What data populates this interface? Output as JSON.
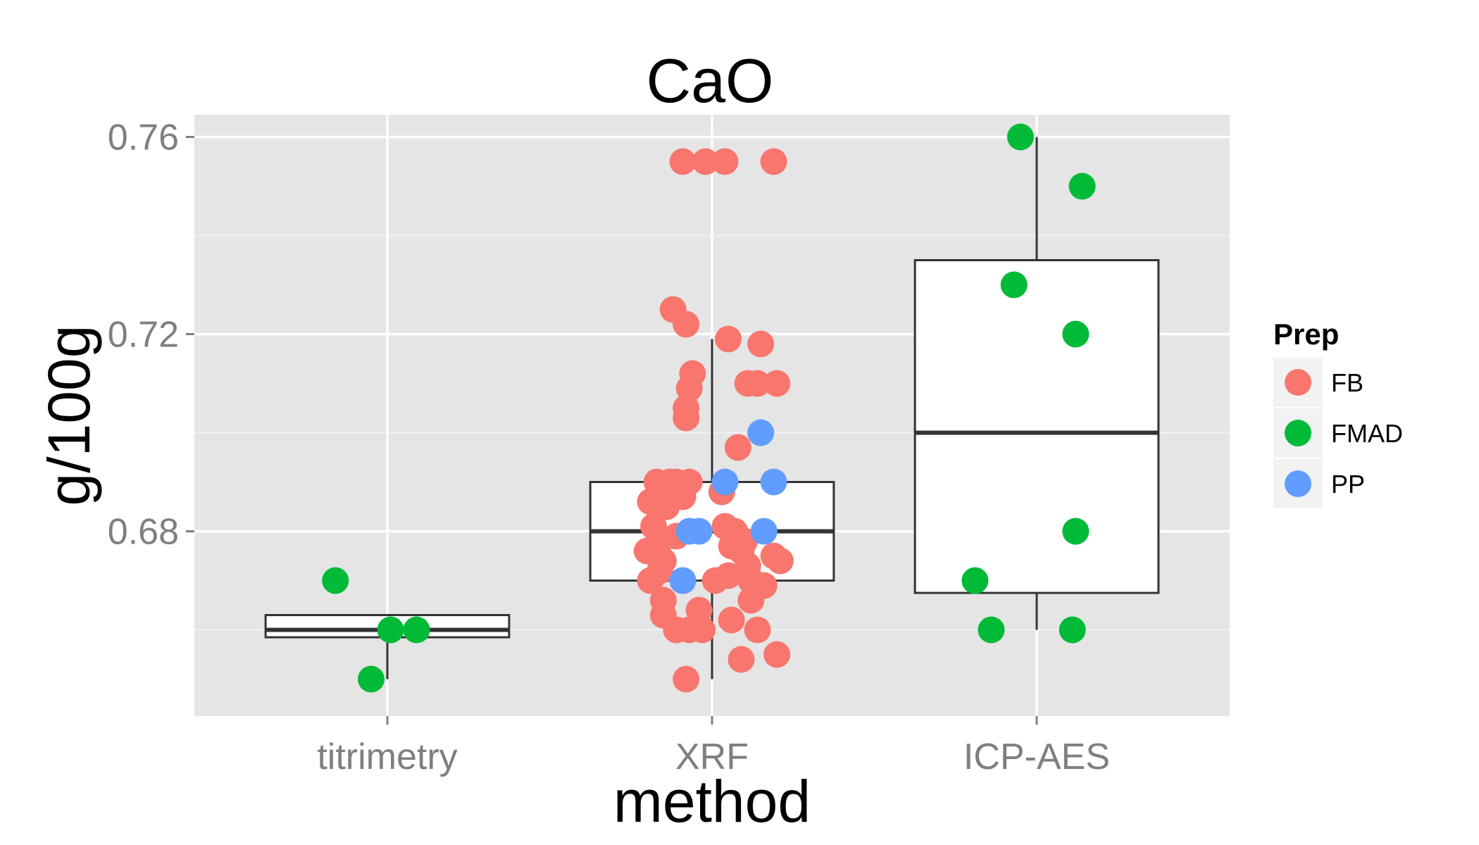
{
  "chart_data": {
    "type": "boxplot",
    "title": "CaO",
    "xlabel": "method",
    "ylabel": "g/100g",
    "categories": [
      "titrimetry",
      "XRF",
      "ICP-AES"
    ],
    "y_ticks": [
      "0.68",
      "0.72",
      "0.76"
    ],
    "ylim": [
      0.6425,
      0.7645
    ],
    "grid": true,
    "legend": {
      "title": "Prep",
      "position": "right",
      "entries": [
        {
          "name": "FB",
          "color": "#F8766D"
        },
        {
          "name": "FMAD",
          "color": "#00BA38"
        },
        {
          "name": "PP",
          "color": "#619CFF"
        }
      ]
    },
    "boxes": [
      {
        "category": "titrimetry",
        "whisker_low": 0.65,
        "q1": 0.6585,
        "median": 0.66,
        "q3": 0.663,
        "whisker_high": 0.663
      },
      {
        "category": "XRF",
        "whisker_low": 0.65,
        "q1": 0.67,
        "median": 0.68,
        "q3": 0.69,
        "whisker_high": 0.719
      },
      {
        "category": "ICP-AES",
        "whisker_low": 0.66,
        "q1": 0.6675,
        "median": 0.7,
        "q3": 0.735,
        "whisker_high": 0.76
      }
    ],
    "points": [
      {
        "category": "titrimetry",
        "jitter": 0.0,
        "prep": "FMAD",
        "value": 0.67,
        "x": -0.16
      },
      {
        "category": "titrimetry",
        "prep": "FMAD",
        "value": 0.66,
        "x": 0.01
      },
      {
        "category": "titrimetry",
        "prep": "FMAD",
        "value": 0.66,
        "x": 0.09
      },
      {
        "category": "titrimetry",
        "prep": "FMAD",
        "value": 0.65,
        "x": -0.05
      },
      {
        "category": "XRF",
        "prep": "FB",
        "value": 0.755,
        "x": -0.09
      },
      {
        "category": "XRF",
        "prep": "FB",
        "value": 0.755,
        "x": -0.02
      },
      {
        "category": "XRF",
        "prep": "FB",
        "value": 0.755,
        "x": 0.04
      },
      {
        "category": "XRF",
        "prep": "FB",
        "value": 0.755,
        "x": 0.19
      },
      {
        "category": "XRF",
        "prep": "FB",
        "value": 0.725,
        "x": -0.12
      },
      {
        "category": "XRF",
        "prep": "FB",
        "value": 0.722,
        "x": -0.08
      },
      {
        "category": "XRF",
        "prep": "FB",
        "value": 0.719,
        "x": 0.05
      },
      {
        "category": "XRF",
        "prep": "FB",
        "value": 0.718,
        "x": 0.15
      },
      {
        "category": "XRF",
        "prep": "FB",
        "value": 0.712,
        "x": -0.06
      },
      {
        "category": "XRF",
        "prep": "FB",
        "value": 0.709,
        "x": -0.07
      },
      {
        "category": "XRF",
        "prep": "FB",
        "value": 0.71,
        "x": 0.11
      },
      {
        "category": "XRF",
        "prep": "FB",
        "value": 0.71,
        "x": 0.14
      },
      {
        "category": "XRF",
        "prep": "FB",
        "value": 0.71,
        "x": 0.2
      },
      {
        "category": "XRF",
        "prep": "FB",
        "value": 0.705,
        "x": -0.08
      },
      {
        "category": "XRF",
        "prep": "FB",
        "value": 0.703,
        "x": -0.08
      },
      {
        "category": "XRF",
        "prep": "FB",
        "value": 0.697,
        "x": 0.08
      },
      {
        "category": "XRF",
        "prep": "FB",
        "value": 0.69,
        "x": -0.17
      },
      {
        "category": "XRF",
        "prep": "FB",
        "value": 0.69,
        "x": -0.13
      },
      {
        "category": "XRF",
        "prep": "FB",
        "value": 0.69,
        "x": -0.11
      },
      {
        "category": "XRF",
        "prep": "FB",
        "value": 0.69,
        "x": -0.07
      },
      {
        "category": "XRF",
        "prep": "FB",
        "value": 0.688,
        "x": 0.03
      },
      {
        "category": "XRF",
        "prep": "FB",
        "value": 0.687,
        "x": -0.09
      },
      {
        "category": "XRF",
        "prep": "FB",
        "value": 0.686,
        "x": -0.19
      },
      {
        "category": "XRF",
        "prep": "FB",
        "value": 0.685,
        "x": -0.14
      },
      {
        "category": "XRF",
        "prep": "FB",
        "value": 0.681,
        "x": -0.18
      },
      {
        "category": "XRF",
        "prep": "FB",
        "value": 0.681,
        "x": 0.04
      },
      {
        "category": "XRF",
        "prep": "FB",
        "value": 0.68,
        "x": 0.07
      },
      {
        "category": "XRF",
        "prep": "FB",
        "value": 0.679,
        "x": -0.11
      },
      {
        "category": "XRF",
        "prep": "FB",
        "value": 0.678,
        "x": -0.16
      },
      {
        "category": "XRF",
        "prep": "FB",
        "value": 0.678,
        "x": 0.1
      },
      {
        "category": "XRF",
        "prep": "FB",
        "value": 0.677,
        "x": 0.06
      },
      {
        "category": "XRF",
        "prep": "FB",
        "value": 0.676,
        "x": -0.2
      },
      {
        "category": "XRF",
        "prep": "FB",
        "value": 0.676,
        "x": 0.09
      },
      {
        "category": "XRF",
        "prep": "FB",
        "value": 0.675,
        "x": 0.19
      },
      {
        "category": "XRF",
        "prep": "FB",
        "value": 0.674,
        "x": 0.21
      },
      {
        "category": "XRF",
        "prep": "FB",
        "value": 0.674,
        "x": -0.15
      },
      {
        "category": "XRF",
        "prep": "FB",
        "value": 0.673,
        "x": 0.11
      },
      {
        "category": "XRF",
        "prep": "FB",
        "value": 0.672,
        "x": -0.16
      },
      {
        "category": "XRF",
        "prep": "FB",
        "value": 0.671,
        "x": 0.05
      },
      {
        "category": "XRF",
        "prep": "FB",
        "value": 0.67,
        "x": -0.19
      },
      {
        "category": "XRF",
        "prep": "FB",
        "value": 0.67,
        "x": -0.09
      },
      {
        "category": "XRF",
        "prep": "FB",
        "value": 0.67,
        "x": 0.01
      },
      {
        "category": "XRF",
        "prep": "FB",
        "value": 0.67,
        "x": 0.12
      },
      {
        "category": "XRF",
        "prep": "FB",
        "value": 0.669,
        "x": 0.16
      },
      {
        "category": "XRF",
        "prep": "FB",
        "value": 0.666,
        "x": -0.15
      },
      {
        "category": "XRF",
        "prep": "FB",
        "value": 0.666,
        "x": 0.12
      },
      {
        "category": "XRF",
        "prep": "FB",
        "value": 0.664,
        "x": -0.04
      },
      {
        "category": "XRF",
        "prep": "FB",
        "value": 0.663,
        "x": -0.15
      },
      {
        "category": "XRF",
        "prep": "FB",
        "value": 0.662,
        "x": 0.06
      },
      {
        "category": "XRF",
        "prep": "FB",
        "value": 0.66,
        "x": -0.11
      },
      {
        "category": "XRF",
        "prep": "FB",
        "value": 0.66,
        "x": -0.07
      },
      {
        "category": "XRF",
        "prep": "FB",
        "value": 0.66,
        "x": -0.03
      },
      {
        "category": "XRF",
        "prep": "FB",
        "value": 0.66,
        "x": 0.14
      },
      {
        "category": "XRF",
        "prep": "FB",
        "value": 0.655,
        "x": 0.2
      },
      {
        "category": "XRF",
        "prep": "FB",
        "value": 0.654,
        "x": 0.09
      },
      {
        "category": "XRF",
        "prep": "FB",
        "value": 0.65,
        "x": -0.08
      },
      {
        "category": "XRF",
        "prep": "PP",
        "value": 0.7,
        "x": 0.15
      },
      {
        "category": "XRF",
        "prep": "PP",
        "value": 0.69,
        "x": 0.04
      },
      {
        "category": "XRF",
        "prep": "PP",
        "value": 0.69,
        "x": 0.19
      },
      {
        "category": "XRF",
        "prep": "PP",
        "value": 0.68,
        "x": -0.07
      },
      {
        "category": "XRF",
        "prep": "PP",
        "value": 0.68,
        "x": -0.04
      },
      {
        "category": "XRF",
        "prep": "PP",
        "value": 0.68,
        "x": 0.16
      },
      {
        "category": "XRF",
        "prep": "PP",
        "value": 0.67,
        "x": -0.09
      },
      {
        "category": "ICP-AES",
        "prep": "FMAD",
        "value": 0.76,
        "x": -0.05
      },
      {
        "category": "ICP-AES",
        "prep": "FMAD",
        "value": 0.75,
        "x": 0.14
      },
      {
        "category": "ICP-AES",
        "prep": "FMAD",
        "value": 0.73,
        "x": -0.07
      },
      {
        "category": "ICP-AES",
        "prep": "FMAD",
        "value": 0.72,
        "x": 0.12
      },
      {
        "category": "ICP-AES",
        "prep": "FMAD",
        "value": 0.68,
        "x": 0.12
      },
      {
        "category": "ICP-AES",
        "prep": "FMAD",
        "value": 0.67,
        "x": -0.19
      },
      {
        "category": "ICP-AES",
        "prep": "FMAD",
        "value": 0.66,
        "x": -0.14
      },
      {
        "category": "ICP-AES",
        "prep": "FMAD",
        "value": 0.66,
        "x": 0.11
      }
    ]
  }
}
